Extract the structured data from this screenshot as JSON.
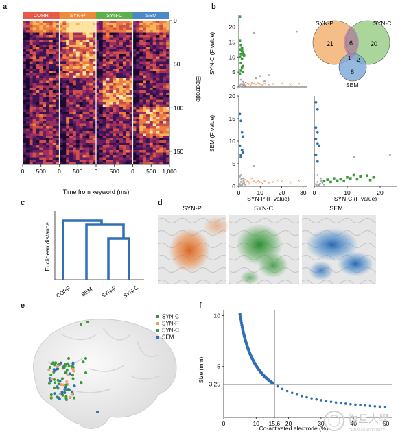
{
  "panel_labels": [
    "a",
    "b",
    "c",
    "d",
    "e",
    "f"
  ],
  "panel_a": {
    "segments": [
      {
        "label": "CORR",
        "color": "#e55b4a"
      },
      {
        "label": "SYN-P",
        "color": "#ee8a3a"
      },
      {
        "label": "SYN-C",
        "color": "#5fb04a"
      },
      {
        "label": "SEM",
        "color": "#4a8ac6"
      }
    ],
    "electrode_ticks": [
      "0",
      "50",
      "100",
      "150"
    ],
    "ylabel": "Electrode",
    "time_ticks": [
      "0",
      "500",
      "0",
      "500",
      "0",
      "500",
      "0",
      "500",
      "1,000"
    ],
    "xlabel": "Time from keyword (ms)"
  },
  "panel_b": {
    "top_ylabel": "SYN-C (F value)",
    "bottom_ylabel": "SEM (F value)",
    "bottom_left_xlabel": "SYN-P (F value)",
    "bottom_right_xlabel": "SYN-C (F value)",
    "top_yticks": [
      "0",
      "5",
      "10",
      "15",
      "20"
    ],
    "bottom_yticks": [
      "0",
      "5",
      "10",
      "15",
      "20"
    ],
    "left_xticks": [
      "0",
      "10",
      "20",
      "30"
    ],
    "right_xticks": [
      "0",
      "10",
      "20"
    ],
    "venn": {
      "sets": [
        {
          "label": "SYN-P",
          "color": "#f2a860"
        },
        {
          "label": "SYN-C",
          "color": "#8dc87a"
        },
        {
          "label": "SEM",
          "color": "#7aa7d6"
        }
      ],
      "counts": {
        "p_only": "21",
        "c_only": "20",
        "pc": "6",
        "pcs": "1",
        "cs": "2",
        "sem_only": "8"
      }
    }
  },
  "chart_data": [
    {
      "type": "scatter",
      "xlabel": "",
      "ylabel": "SYN-C (F value)",
      "xlim": [
        0,
        32
      ],
      "ylim": [
        0,
        24
      ],
      "series": [
        {
          "color": "#3a9a3a",
          "points": [
            [
              0.5,
              23.5
            ],
            [
              0.5,
              15.5
            ],
            [
              1,
              14
            ],
            [
              1.5,
              13
            ],
            [
              0.5,
              12.5
            ],
            [
              1.5,
              12
            ],
            [
              2,
              11.5
            ],
            [
              1,
              11
            ],
            [
              2.5,
              10.5
            ],
            [
              0.5,
              10
            ],
            [
              1.5,
              9.5
            ],
            [
              1,
              8
            ],
            [
              2,
              7
            ],
            [
              1.5,
              6.5
            ],
            [
              1,
              5.5
            ],
            [
              2,
              5
            ],
            [
              0.5,
              4.5
            ],
            [
              1.5,
              12.8
            ],
            [
              2.2,
              10.8
            ]
          ]
        },
        {
          "color": "#f08a4a",
          "points": [
            [
              3,
              1.5
            ],
            [
              4,
              1.2
            ],
            [
              5,
              1
            ],
            [
              6,
              1.4
            ],
            [
              7,
              1.1
            ],
            [
              8,
              0.9
            ],
            [
              9,
              1.3
            ],
            [
              10,
              1
            ],
            [
              12,
              1.2
            ],
            [
              14,
              0.8
            ],
            [
              16,
              1
            ],
            [
              20,
              1.1
            ],
            [
              24,
              0.9
            ],
            [
              28,
              1.2
            ],
            [
              5.5,
              0.6
            ],
            [
              11,
              0.7
            ]
          ]
        },
        {
          "color": "#a9a9a9",
          "points": [
            [
              0.5,
              0.5
            ],
            [
              1,
              1
            ],
            [
              1.5,
              0.3
            ],
            [
              2,
              1.8
            ],
            [
              2.5,
              0.8
            ],
            [
              3,
              0.4
            ],
            [
              1,
              2.5
            ],
            [
              0.8,
              0.2
            ],
            [
              2.2,
              1.2
            ],
            [
              1.8,
              0.6
            ],
            [
              7,
              18
            ],
            [
              8,
              3
            ],
            [
              10,
              3.5
            ],
            [
              12,
              2
            ],
            [
              14,
              4
            ],
            [
              27,
              18.5
            ]
          ]
        }
      ]
    },
    {
      "type": "scatter",
      "xlabel": "SYN-P (F value)",
      "ylabel": "SEM (F value)",
      "xlim": [
        0,
        32
      ],
      "ylim": [
        0,
        20
      ],
      "series": [
        {
          "color": "#2e6fb5",
          "points": [
            [
              0.5,
              16
            ],
            [
              1,
              14.5
            ],
            [
              1.5,
              12
            ],
            [
              2,
              11
            ],
            [
              0.5,
              9
            ],
            [
              1.5,
              8
            ],
            [
              1,
              7
            ],
            [
              2,
              7.5
            ],
            [
              1,
              6.5
            ]
          ]
        },
        {
          "color": "#f08a4a",
          "points": [
            [
              3,
              1.5
            ],
            [
              4,
              1.2
            ],
            [
              5,
              1
            ],
            [
              6,
              1.8
            ],
            [
              7,
              1.1
            ],
            [
              8,
              0.9
            ],
            [
              9,
              1.3
            ],
            [
              10,
              1
            ],
            [
              12,
              1.2
            ],
            [
              14,
              0.8
            ],
            [
              16,
              1
            ],
            [
              20,
              1.1
            ],
            [
              24,
              0.9
            ],
            [
              28,
              1.3
            ],
            [
              5,
              0.6
            ],
            [
              11,
              0.7
            ],
            [
              18,
              1.4
            ]
          ]
        },
        {
          "color": "#a9a9a9",
          "points": [
            [
              0.5,
              0.5
            ],
            [
              1,
              1
            ],
            [
              1.5,
              0.3
            ],
            [
              2,
              1.8
            ],
            [
              2.5,
              0.8
            ],
            [
              3,
              0.4
            ],
            [
              1,
              2.5
            ],
            [
              0.8,
              0.2
            ],
            [
              2.2,
              1.2
            ],
            [
              1.8,
              0.6
            ],
            [
              7,
              4.5
            ],
            [
              0.5,
              2.2
            ],
            [
              1.2,
              1.6
            ]
          ]
        }
      ]
    },
    {
      "type": "scatter",
      "xlabel": "SYN-C (F value)",
      "ylabel": "",
      "xlim": [
        0,
        25
      ],
      "ylim": [
        0,
        20
      ],
      "series": [
        {
          "color": "#2e6fb5",
          "points": [
            [
              0.5,
              18.5
            ],
            [
              1,
              17
            ],
            [
              0.5,
              13
            ],
            [
              1,
              12
            ],
            [
              0.5,
              10.5
            ],
            [
              1,
              9.5
            ],
            [
              1.5,
              9
            ],
            [
              0.5,
              7
            ],
            [
              1,
              5.5
            ]
          ]
        },
        {
          "color": "#3a9a3a",
          "points": [
            [
              3,
              1.2
            ],
            [
              4,
              1.5
            ],
            [
              5,
              1
            ],
            [
              6,
              1.8
            ],
            [
              7,
              1.3
            ],
            [
              8,
              1.6
            ],
            [
              9,
              1.2
            ],
            [
              10,
              2
            ],
            [
              11,
              1.8
            ],
            [
              12,
              2.5
            ],
            [
              13,
              1.6
            ],
            [
              14,
              2.2
            ],
            [
              16,
              2.4
            ],
            [
              18,
              2
            ],
            [
              17,
              1.4
            ]
          ]
        },
        {
          "color": "#a9a9a9",
          "points": [
            [
              0.5,
              0.5
            ],
            [
              1,
              1
            ],
            [
              1.5,
              0.3
            ],
            [
              2,
              1.8
            ],
            [
              2.5,
              0.8
            ],
            [
              3,
              0.4
            ],
            [
              1,
              2.5
            ],
            [
              0.8,
              0.2
            ],
            [
              2.2,
              1.2
            ],
            [
              1.8,
              0.6
            ],
            [
              12,
              6.5
            ],
            [
              23,
              7
            ]
          ]
        }
      ]
    },
    {
      "type": "line",
      "xlabel": "Co-activated electrode (%)",
      "ylabel": "Size (mm)",
      "xlim": [
        0,
        52
      ],
      "ylim": [
        0,
        10.5
      ],
      "x_ticks": [
        "0",
        "10",
        "15.6",
        "20",
        "30",
        "40",
        "50"
      ],
      "y_ticks": [
        "3.25",
        "5",
        "10"
      ],
      "reference": {
        "x": 15.6,
        "y": 3.25
      },
      "series": [
        {
          "color": "#2e6fb5",
          "function": "inverse",
          "k": 50.7,
          "x_start": 5,
          "x_end": 50
        }
      ]
    }
  ],
  "panel_c": {
    "ylabel": "Euclidean distance",
    "leaves": [
      "CORR",
      "SEM",
      "SYN-P",
      "SYN-C"
    ],
    "color": "#2e6fb5"
  },
  "panel_d": {
    "maps": [
      {
        "label": "SYN-P",
        "color": "#e8772a"
      },
      {
        "label": "SYN-C",
        "color": "#3a9a3a"
      },
      {
        "label": "SEM",
        "color": "#3c82c8"
      }
    ]
  },
  "panel_e": {
    "legend": [
      {
        "label": "SYN-C",
        "color": "#3a9a3a"
      },
      {
        "label": "SYN-P",
        "color": "#f0a070"
      },
      {
        "label": "SYN-C",
        "color": "#3a9a3a"
      },
      {
        "label": "SEM",
        "color": "#2e6fb5"
      }
    ]
  },
  "watermark": {
    "text": "復旦大學",
    "subtext": "FUDAN UNIVERSITY"
  }
}
